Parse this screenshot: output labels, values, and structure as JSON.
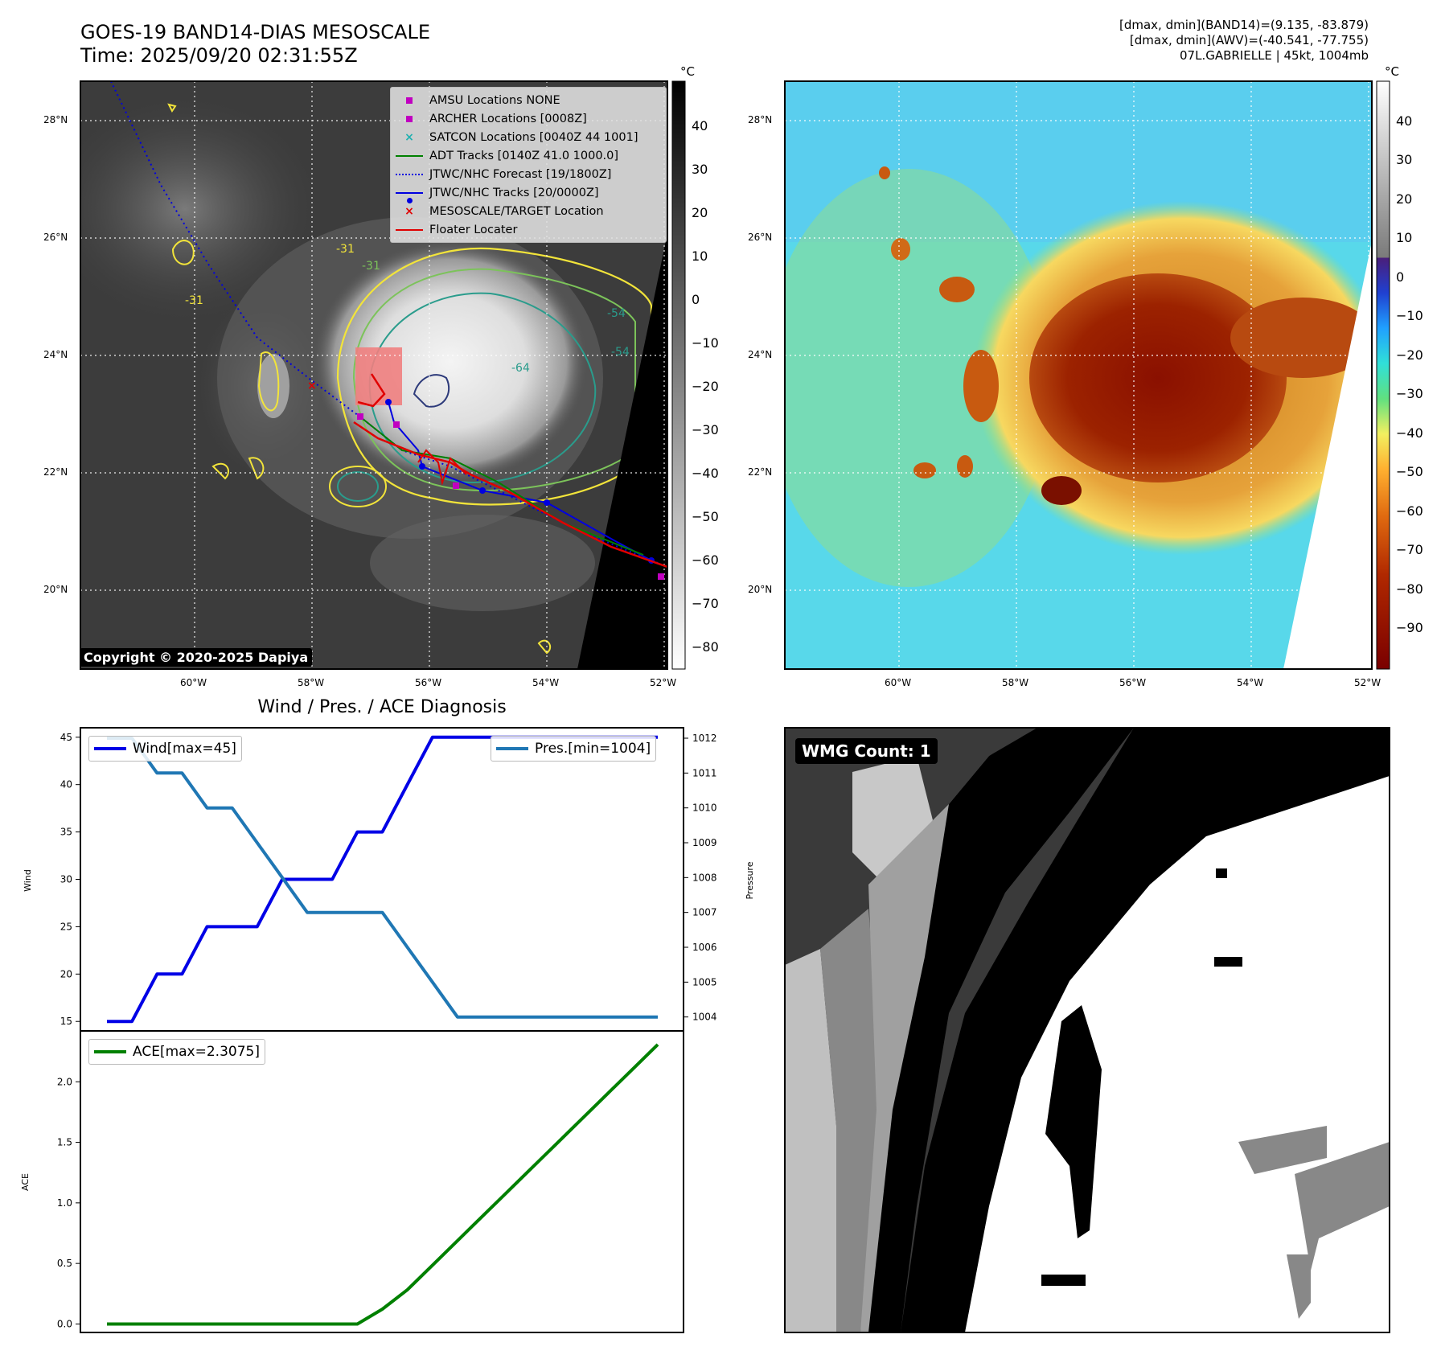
{
  "header": {
    "title_line1": "GOES-19 BAND14-DIAS MESOSCALE",
    "title_line2": "Time: 2025/09/20 02:31:55Z",
    "right_line1": "[dmax, dmin](BAND14)=(9.135, -83.879)",
    "right_line2": "[dmax, dmin](AWV)=(-40.541, -77.755)",
    "right_line3": "07L.GABRIELLE | 45kt, 1004mb"
  },
  "copyright": "Copyright © 2020-2025 Dapiya",
  "wmg_count": "WMG Count: 1",
  "map": {
    "lat_labels": [
      "28°N",
      "26°N",
      "24°N",
      "22°N",
      "20°N"
    ],
    "lon_labels": [
      "60°W",
      "58°W",
      "56°W",
      "54°W",
      "52°W"
    ],
    "contour_labels": [
      "-31",
      "-31",
      "-54",
      "-54",
      "-64",
      "-31"
    ],
    "colors": {
      "contour_yellow": "#f2e43a",
      "contour_green": "#7cc35a",
      "contour_teal": "#2a9c8c",
      "contour_navy": "#2d3a7a"
    }
  },
  "legend": [
    {
      "label": "AMSU Locations NONE",
      "icon": "magenta-square",
      "color": "#c000c0"
    },
    {
      "label": "ARCHER Locations [0008Z]",
      "icon": "magenta-square",
      "color": "#c000c0"
    },
    {
      "label": "SATCON Locations [0040Z 44 1001]",
      "icon": "cyan-x",
      "color": "#20b0b0"
    },
    {
      "label": "ADT Tracks [0140Z 41.0 1000.0]",
      "icon": "green-line",
      "color": "#008000"
    },
    {
      "label": "JTWC/NHC Forecast [19/1800Z]",
      "icon": "blue-dotted-line",
      "color": "#0000e0"
    },
    {
      "label": "JTWC/NHC Tracks [20/0000Z]",
      "icon": "blue-line-dot",
      "color": "#0000e0"
    },
    {
      "label": "MESOSCALE/TARGET Location",
      "icon": "red-x",
      "color": "#e00000"
    },
    {
      "label": "Floater Locater",
      "icon": "red-line",
      "color": "#e00000"
    }
  ],
  "colorbar1": {
    "unit": "°C",
    "ticks": [
      "40",
      "30",
      "20",
      "10",
      "0",
      "−10",
      "−20",
      "−30",
      "−40",
      "−50",
      "−60",
      "−70",
      "−80"
    ]
  },
  "colorbar2": {
    "unit": "°C",
    "ticks": [
      "40",
      "30",
      "20",
      "10",
      "0",
      "−10",
      "−20",
      "−30",
      "−40",
      "−50",
      "−60",
      "−70",
      "−80",
      "−90"
    ]
  },
  "chart_data": [
    {
      "type": "line",
      "title": "Wind / Pres. / ACE Diagnosis",
      "ylabel": "Wind",
      "y2label": "Pressure",
      "ylim": [
        14,
        46
      ],
      "y2lim": [
        1003.6,
        1012.3
      ],
      "yticks": [
        15,
        20,
        25,
        30,
        35,
        40,
        45
      ],
      "y2ticks": [
        1004,
        1005,
        1006,
        1007,
        1008,
        1009,
        1010,
        1011,
        1012
      ],
      "x": [
        0,
        1,
        2,
        3,
        4,
        5,
        6,
        7,
        8,
        9,
        10,
        11,
        12,
        13,
        14,
        15,
        16,
        17,
        18,
        19,
        20,
        21,
        22
      ],
      "series": [
        {
          "name": "Wind[max=45]",
          "axis": "left",
          "color": "#0000e6",
          "values": [
            15,
            15,
            20,
            20,
            25,
            25,
            25,
            30,
            30,
            30,
            35,
            35,
            40,
            45,
            45,
            45,
            45,
            45,
            45,
            45,
            45,
            45,
            45
          ]
        },
        {
          "name": "Pres.[min=1004]",
          "axis": "right",
          "color": "#1f77b4",
          "values": [
            1012,
            1012,
            1011,
            1011,
            1010,
            1010,
            1009,
            1008,
            1007,
            1007,
            1007,
            1007,
            1006,
            1005,
            1004,
            1004,
            1004,
            1004,
            1004,
            1004,
            1004,
            1004,
            1004
          ]
        }
      ]
    },
    {
      "type": "line",
      "ylabel": "ACE",
      "ylim": [
        -0.07,
        2.42
      ],
      "yticks": [
        "0.0",
        "0.5",
        "1.0",
        "1.5",
        "2.0"
      ],
      "x": [
        0,
        1,
        2,
        3,
        4,
        5,
        6,
        7,
        8,
        9,
        10,
        11,
        12,
        13,
        14,
        15,
        16,
        17,
        18,
        19,
        20,
        21,
        22
      ],
      "series": [
        {
          "name": "ACE[max=2.3075]",
          "color": "#008000",
          "values": [
            0,
            0,
            0,
            0,
            0,
            0,
            0,
            0,
            0,
            0,
            0,
            0.1225,
            0.2825,
            0.485,
            0.6875,
            0.89,
            1.0925,
            1.295,
            1.4975,
            1.7,
            1.9025,
            2.105,
            2.3075
          ]
        }
      ]
    }
  ]
}
